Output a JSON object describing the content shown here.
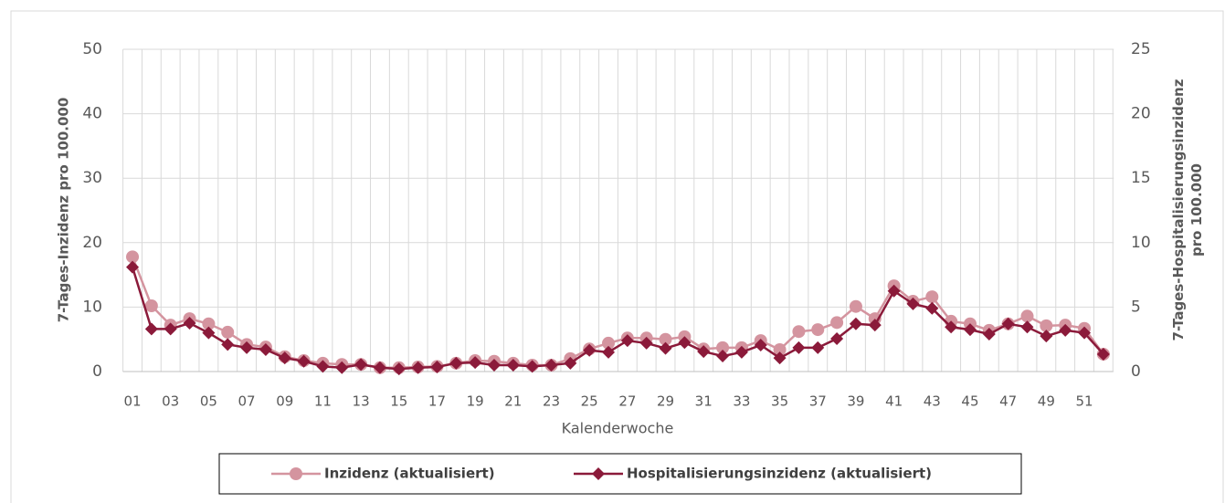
{
  "chart_data": {
    "type": "line",
    "x_label": "Kalenderwoche",
    "y_label": "7-Tages-Inzidenz pro 100.000",
    "y2_label": "7-Tages-Hospitalisierungsinzidenz pro 100.000",
    "categories": [
      "01",
      null,
      "03",
      null,
      "05",
      null,
      "07",
      null,
      "09",
      null,
      "11",
      null,
      "13",
      null,
      "15",
      null,
      "17",
      null,
      "19",
      null,
      "21",
      null,
      "23",
      null,
      "25",
      null,
      "27",
      null,
      "29",
      null,
      "31",
      null,
      "33",
      null,
      "35",
      null,
      "37",
      null,
      "39",
      null,
      "41",
      null,
      "43",
      null,
      "45",
      null,
      "47",
      null,
      "49",
      null,
      "51",
      null
    ],
    "ylim": [
      0,
      50
    ],
    "yticks": [
      0,
      10,
      20,
      30,
      40,
      50
    ],
    "y2lim": [
      0,
      25
    ],
    "y2ticks": [
      0,
      5,
      10,
      15,
      20,
      25
    ],
    "grid": true,
    "legend": "bottom",
    "series": [
      {
        "name": "Inzidenz (aktualisiert)",
        "color": "#d4949f",
        "marker": "circle",
        "values": [
          17.8,
          10.2,
          7.2,
          8.2,
          7.4,
          6.1,
          4.2,
          3.8,
          2.3,
          1.7,
          1.3,
          1.1,
          1.1,
          0.6,
          0.6,
          0.7,
          0.8,
          1.3,
          1.7,
          1.6,
          1.3,
          1.0,
          1.0,
          2.0,
          3.5,
          4.4,
          5.2,
          5.2,
          5.0,
          5.4,
          3.5,
          3.7,
          3.7,
          4.8,
          3.4,
          6.2,
          6.5,
          7.6,
          10.1,
          8.2,
          13.3,
          10.9,
          11.6,
          7.8,
          7.4,
          6.4,
          7.4,
          8.6,
          7.1,
          7.2,
          6.7,
          2.7
        ]
      },
      {
        "name": "Hospitalisierungsinzidenz (aktualisiert)",
        "color": "#8b1a3a",
        "marker": "diamond",
        "axis": "y2",
        "values": [
          8.1,
          3.3,
          3.3,
          3.75,
          3.0,
          2.1,
          1.85,
          1.7,
          1.05,
          0.8,
          0.4,
          0.3,
          0.55,
          0.3,
          0.2,
          0.3,
          0.35,
          0.65,
          0.7,
          0.5,
          0.5,
          0.4,
          0.5,
          0.65,
          1.65,
          1.5,
          2.4,
          2.2,
          1.8,
          2.25,
          1.55,
          1.2,
          1.5,
          2.05,
          1.05,
          1.85,
          1.85,
          2.55,
          3.7,
          3.6,
          6.25,
          5.25,
          4.9,
          3.45,
          3.25,
          2.9,
          3.7,
          3.45,
          2.75,
          3.2,
          3.0,
          1.35
        ]
      }
    ]
  }
}
